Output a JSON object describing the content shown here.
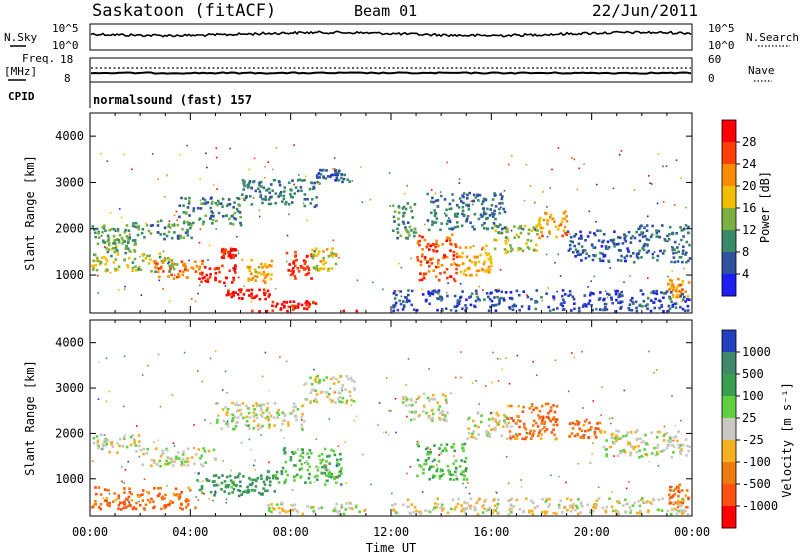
{
  "header": {
    "station": "Saskatoon (fitACF)",
    "beam": "Beam 01",
    "date": "22/Jun/2011"
  },
  "strip_panels": {
    "nsky_label": "N.Sky",
    "nsky_ticks": [
      "10^5",
      "10^0"
    ],
    "nsearch_label": "N.Search",
    "nsearch_ticks": [
      "10^5",
      "10^0"
    ],
    "freq_label": "Freq.",
    "freq_unit": "[MHz]",
    "freq_ticks": [
      "18",
      "8"
    ],
    "nave_label": "Nave",
    "nave_ticks": [
      "60",
      "0"
    ],
    "cpid_label": "CPID",
    "cpid_text": "normalsound (fast) 157"
  },
  "colorbars": {
    "power": {
      "label": "Power [dB]",
      "ticks": [
        "28",
        "24",
        "20",
        "16",
        "12",
        "8",
        "4"
      ],
      "colors": [
        "#ff0000",
        "#ff4000",
        "#ff8c00",
        "#f0c000",
        "#7cb040",
        "#3a8a6a",
        "#3050a0",
        "#1e1ef0"
      ]
    },
    "velocity": {
      "label": "Velocity [m s⁻¹]",
      "ticks": [
        "1000",
        "500",
        "100",
        "25",
        "-25",
        "-100",
        "-500",
        "-1000"
      ],
      "colors": [
        "#2040c0",
        "#3f8a6a",
        "#3aa050",
        "#60d040",
        "#c8c8c0",
        "#f5b020",
        "#f07a10",
        "#ff5010",
        "#ff0000"
      ]
    }
  },
  "chart_data": [
    {
      "type": "heatmap",
      "title": "Power",
      "ylabel": "Slant Range [km]",
      "xlabel": "",
      "ylim": [
        180,
        4500
      ],
      "yticks": [
        1000,
        2000,
        3000,
        4000
      ],
      "clim": [
        0,
        30
      ],
      "regions": [
        {
          "t0": 0.0,
          "t1": 1.6,
          "r0": 1700,
          "r1": 2100,
          "v": 11
        },
        {
          "t0": 0.3,
          "t1": 1.8,
          "r0": 1500,
          "r1": 1800,
          "v": 12
        },
        {
          "t0": 0.0,
          "t1": 3.5,
          "r0": 1100,
          "r1": 1500,
          "v": 14
        },
        {
          "t0": 2.5,
          "t1": 4.5,
          "r0": 950,
          "r1": 1350,
          "v": 22
        },
        {
          "t0": 4.3,
          "t1": 5.8,
          "r0": 850,
          "r1": 1250,
          "v": 27
        },
        {
          "t0": 5.2,
          "t1": 5.8,
          "r0": 1400,
          "r1": 1600,
          "v": 27
        },
        {
          "t0": 6.2,
          "t1": 7.2,
          "r0": 850,
          "r1": 1350,
          "v": 18
        },
        {
          "t0": 7.8,
          "t1": 8.8,
          "r0": 950,
          "r1": 1550,
          "v": 26
        },
        {
          "t0": 8.8,
          "t1": 9.8,
          "r0": 1100,
          "r1": 1600,
          "v": 16
        },
        {
          "t0": 5.4,
          "t1": 7.2,
          "r0": 500,
          "r1": 720,
          "v": 28
        },
        {
          "t0": 7.2,
          "t1": 9.0,
          "r0": 200,
          "r1": 480,
          "v": 27
        },
        {
          "t0": 6.0,
          "t1": 10.6,
          "r0": 180,
          "r1": 260,
          "v": 26
        },
        {
          "t0": 1.5,
          "t1": 4.0,
          "r0": 1800,
          "r1": 2200,
          "v": 10
        },
        {
          "t0": 3.5,
          "t1": 6.0,
          "r0": 2100,
          "r1": 2700,
          "v": 9
        },
        {
          "t0": 6.0,
          "t1": 9.0,
          "r0": 2500,
          "r1": 3100,
          "v": 8
        },
        {
          "t0": 9.0,
          "t1": 10.3,
          "r0": 3000,
          "r1": 3300,
          "v": 6
        },
        {
          "t0": 13.0,
          "t1": 14.6,
          "r0": 900,
          "r1": 1900,
          "v": 24
        },
        {
          "t0": 14.6,
          "t1": 16.0,
          "r0": 1000,
          "r1": 1700,
          "v": 19
        },
        {
          "t0": 16.0,
          "t1": 17.8,
          "r0": 1500,
          "r1": 2100,
          "v": 14
        },
        {
          "t0": 17.8,
          "t1": 19.0,
          "r0": 1800,
          "r1": 2400,
          "v": 20
        },
        {
          "t0": 19.0,
          "t1": 21.5,
          "r0": 1300,
          "r1": 2000,
          "v": 6
        },
        {
          "t0": 21.5,
          "t1": 24.0,
          "r0": 1300,
          "r1": 2100,
          "v": 7
        },
        {
          "t0": 23.0,
          "t1": 24.0,
          "r0": 550,
          "r1": 950,
          "v": 20
        },
        {
          "t0": 12.0,
          "t1": 13.0,
          "r0": 1800,
          "r1": 2600,
          "v": 10
        },
        {
          "t0": 13.4,
          "t1": 16.5,
          "r0": 2000,
          "r1": 2800,
          "v": 8
        },
        {
          "t0": 12.0,
          "t1": 24.0,
          "r0": 220,
          "r1": 700,
          "v": 5
        }
      ]
    },
    {
      "type": "heatmap",
      "title": "Velocity",
      "ylabel": "Slant Range [km]",
      "xlabel": "Time UT",
      "ylim": [
        180,
        4500
      ],
      "yticks": [
        1000,
        2000,
        3000,
        4000
      ],
      "xlim": [
        0,
        24
      ],
      "xticks": [
        "00:00",
        "04:00",
        "08:00",
        "12:00",
        "16:00",
        "20:00",
        "00:00"
      ],
      "clim": [
        -1000,
        1000
      ],
      "regions": [
        {
          "t0": 0.0,
          "t1": 4.2,
          "r0": 350,
          "r1": 850,
          "v": -500
        },
        {
          "t0": 0.0,
          "t1": 2.0,
          "r0": 1600,
          "r1": 2000,
          "v": 0
        },
        {
          "t0": 2.0,
          "t1": 5.0,
          "r0": 1300,
          "r1": 1700,
          "v": 0
        },
        {
          "t0": 4.2,
          "t1": 7.6,
          "r0": 650,
          "r1": 1200,
          "v": 500
        },
        {
          "t0": 7.6,
          "t1": 10.0,
          "r0": 900,
          "r1": 1700,
          "v": 300
        },
        {
          "t0": 5.0,
          "t1": 8.5,
          "r0": 2100,
          "r1": 2700,
          "v": 0
        },
        {
          "t0": 8.5,
          "t1": 10.5,
          "r0": 2700,
          "r1": 3300,
          "v": 0
        },
        {
          "t0": 7.0,
          "t1": 11.0,
          "r0": 200,
          "r1": 500,
          "v": 0
        },
        {
          "t0": 13.0,
          "t1": 15.0,
          "r0": 1000,
          "r1": 1800,
          "v": 300
        },
        {
          "t0": 12.4,
          "t1": 14.2,
          "r0": 2300,
          "r1": 2900,
          "v": 0
        },
        {
          "t0": 15.0,
          "t1": 17.0,
          "r0": 1900,
          "r1": 2500,
          "v": 0
        },
        {
          "t0": 16.6,
          "t1": 18.6,
          "r0": 1900,
          "r1": 2700,
          "v": -500
        },
        {
          "t0": 19.0,
          "t1": 20.4,
          "r0": 1900,
          "r1": 2300,
          "v": -500
        },
        {
          "t0": 20.4,
          "t1": 24.0,
          "r0": 1500,
          "r1": 2100,
          "v": 0
        },
        {
          "t0": 23.0,
          "t1": 24.0,
          "r0": 400,
          "r1": 900,
          "v": -500
        },
        {
          "t0": 12.0,
          "t1": 24.0,
          "r0": 200,
          "r1": 600,
          "v": -50
        }
      ]
    }
  ]
}
